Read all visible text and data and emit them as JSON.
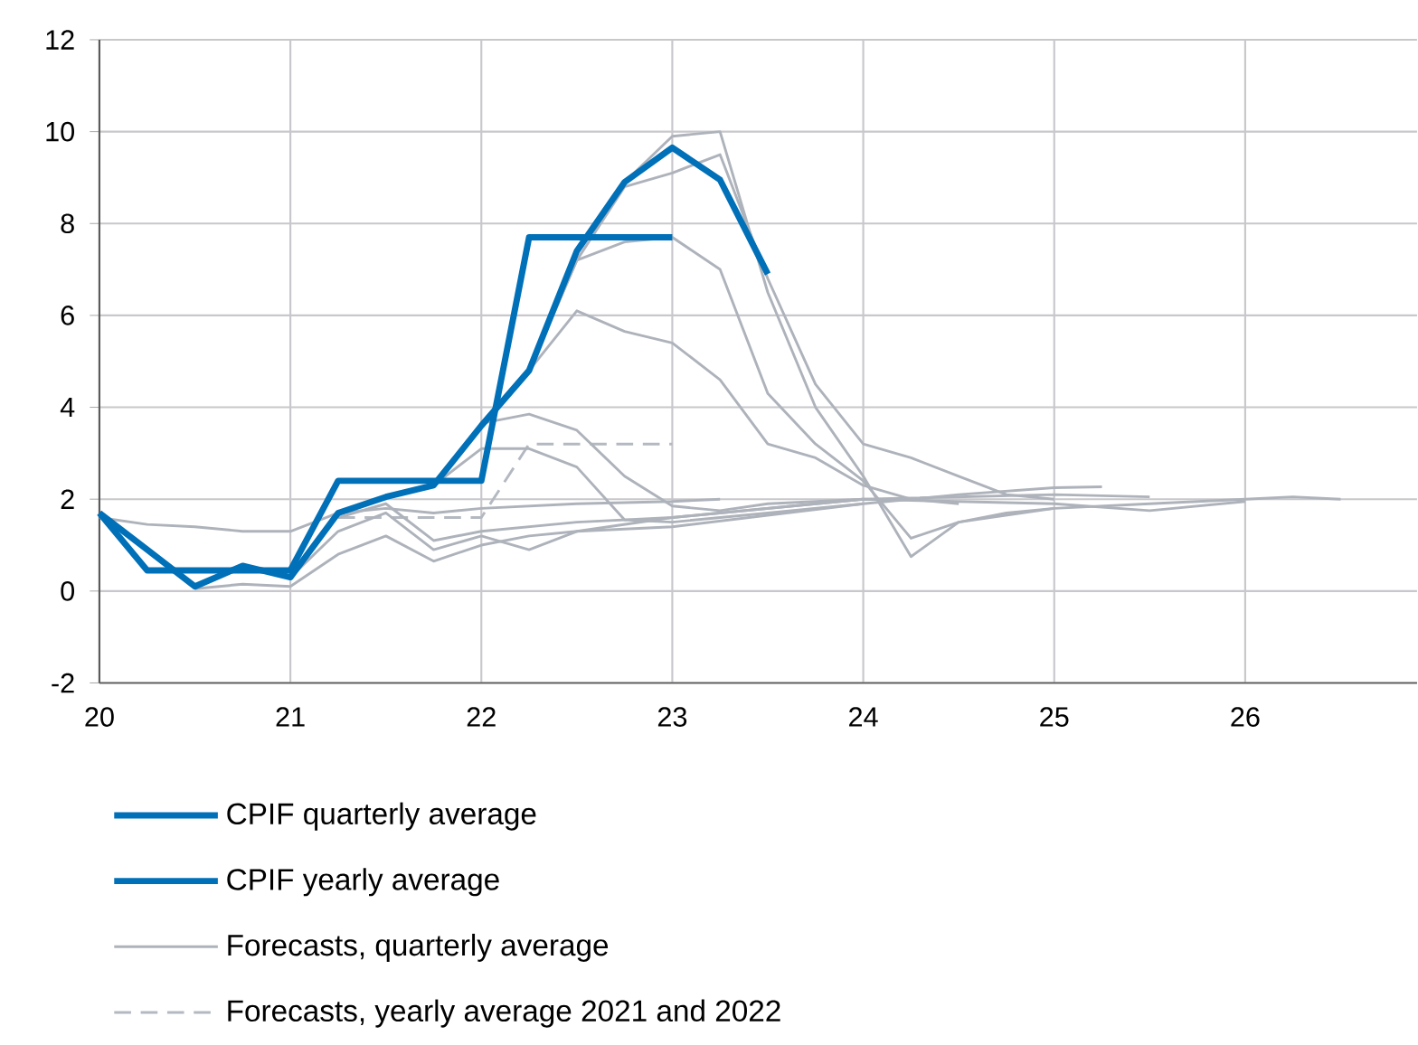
{
  "chart_data": {
    "type": "line",
    "xlim": [
      20,
      26.9
    ],
    "ylim": [
      -2,
      12
    ],
    "xticks": [
      20,
      21,
      22,
      23,
      24,
      25,
      26
    ],
    "yticks": [
      -2,
      0,
      2,
      4,
      6,
      8,
      10,
      12
    ],
    "grid": true,
    "legend": "bottom",
    "marker": "none",
    "series": [
      {
        "name": "CPIF quarterly average",
        "color": "#0070b8",
        "line_style": "solid",
        "x": [
          20,
          20.25,
          20.5,
          20.75,
          21,
          21.25,
          21.5,
          21.75,
          22,
          22.25,
          22.5,
          22.75,
          23,
          23.25,
          23.5
        ],
        "values": [
          1.7,
          0.9,
          0.1,
          0.55,
          0.3,
          1.7,
          2.05,
          2.3,
          3.6,
          4.8,
          7.4,
          8.9,
          9.65,
          8.95,
          6.9
        ]
      },
      {
        "name": "CPIF yearly average",
        "color": "#0070b8",
        "line_style": "solid",
        "x": [
          20,
          20.25,
          21,
          21.25,
          22,
          22.25,
          23
        ],
        "values": [
          1.7,
          0.45,
          0.45,
          2.4,
          2.4,
          7.7,
          7.7
        ]
      },
      {
        "name": "Forecasts, quarterly average",
        "color": "#aeb3bb",
        "line_style": "solid",
        "x": [
          22.25,
          22.5,
          22.75,
          23,
          23.25,
          23.5,
          23.75,
          24,
          24.25,
          24.5,
          24.75,
          25
        ],
        "values": [
          4.8,
          7.2,
          8.8,
          9.1,
          9.5,
          6.8,
          4.5,
          3.2,
          2.9,
          2.5,
          2.1,
          2.0
        ]
      },
      {
        "color": "#aeb3bb",
        "line_style": "solid",
        "x": [
          22.5,
          22.75,
          23,
          23.25,
          23.5,
          23.75,
          24,
          24.25,
          24.5,
          25,
          25.5,
          26,
          26.25,
          26.5
        ],
        "values": [
          7.4,
          8.9,
          9.9,
          10.0,
          6.5,
          4.0,
          2.5,
          0.75,
          1.5,
          1.8,
          1.9,
          2.0,
          2.05,
          2.0
        ]
      },
      {
        "color": "#aeb3bb",
        "line_style": "solid",
        "x": [
          22.25,
          22.5,
          22.75,
          23,
          23.25,
          23.5,
          23.75,
          24,
          24.25,
          24.5,
          24.75,
          25
        ],
        "values": [
          4.8,
          7.2,
          7.6,
          7.7,
          7.0,
          4.3,
          3.2,
          2.4,
          1.15,
          1.5,
          1.7,
          1.8
        ]
      },
      {
        "color": "#aeb3bb",
        "line_style": "solid",
        "x": [
          22.25,
          22.5,
          22.75,
          23,
          23.25,
          23.5,
          23.75,
          24,
          24.25,
          24.5
        ],
        "values": [
          4.8,
          6.1,
          5.65,
          5.4,
          4.6,
          3.2,
          2.9,
          2.3,
          2.0,
          1.9
        ]
      },
      {
        "color": "#aeb3bb",
        "line_style": "solid",
        "x": [
          21.75,
          22,
          22.25,
          22.5,
          22.75,
          23,
          23.25,
          23.5,
          24
        ],
        "values": [
          2.3,
          3.65,
          3.85,
          3.5,
          2.5,
          1.85,
          1.75,
          1.9,
          2.0
        ]
      },
      {
        "color": "#aeb3bb",
        "line_style": "solid",
        "x": [
          21.75,
          22,
          22.25,
          22.5,
          22.75,
          23,
          23.5,
          24
        ],
        "values": [
          2.3,
          3.1,
          3.1,
          2.7,
          1.55,
          1.5,
          1.7,
          1.9
        ]
      },
      {
        "color": "#aeb3bb",
        "line_style": "solid",
        "x": [
          20,
          20.25,
          20.5,
          20.75,
          21,
          21.25,
          21.5,
          21.75,
          22,
          22.5,
          23,
          23.25
        ],
        "values": [
          1.6,
          1.45,
          1.4,
          1.3,
          1.3,
          1.7,
          1.8,
          1.7,
          1.8,
          1.9,
          1.95,
          2.0
        ]
      },
      {
        "color": "#aeb3bb",
        "line_style": "solid",
        "x": [
          20.5,
          20.75,
          21,
          21.25,
          21.5,
          21.75,
          22,
          22.25,
          22.5,
          23,
          24,
          24.5,
          25,
          25.25
        ],
        "values": [
          0.05,
          0.15,
          0.1,
          0.8,
          1.2,
          0.65,
          1.0,
          1.2,
          1.3,
          1.4,
          1.9,
          2.1,
          2.25,
          2.27
        ]
      },
      {
        "color": "#aeb3bb",
        "line_style": "solid",
        "x": [
          21,
          21.25,
          21.5,
          21.75,
          22,
          22.25,
          22.5,
          23,
          24,
          25,
          25.5,
          26
        ],
        "values": [
          0.3,
          1.3,
          1.7,
          0.9,
          1.2,
          0.9,
          1.3,
          1.6,
          2.0,
          1.9,
          1.75,
          1.95
        ]
      },
      {
        "color": "#aeb3bb",
        "line_style": "solid",
        "x": [
          21.25,
          21.5,
          21.75,
          22,
          22.5,
          23,
          24,
          25,
          25.5
        ],
        "values": [
          1.6,
          1.9,
          1.1,
          1.3,
          1.5,
          1.6,
          2.0,
          2.1,
          2.05
        ]
      },
      {
        "name": "Forecasts, yearly average 2021 and 2022",
        "color": "#b4b9c1",
        "line_style": "dashed",
        "x": [
          21.25,
          22,
          22.25,
          23
        ],
        "values": [
          1.6,
          1.6,
          3.2,
          3.2
        ]
      }
    ]
  }
}
